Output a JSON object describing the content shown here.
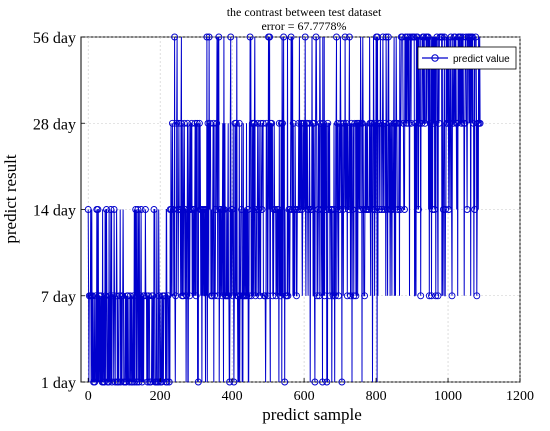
{
  "chart_data": {
    "type": "line",
    "title": "the contrast between test dataset",
    "subtitle": "error = 67.7778%",
    "xlabel": "predict sample",
    "ylabel": "predict result",
    "xlim": [
      -20,
      1200
    ],
    "x_ticks": [
      0,
      200,
      400,
      600,
      800,
      1000,
      1200
    ],
    "y_categories": [
      "1 day",
      "7 day",
      "14 day",
      "28 day",
      "56 day"
    ],
    "y_tick_labels": [
      "1 day",
      "7 day",
      "14 day",
      "28 day",
      "56 day"
    ],
    "grid": true,
    "legend_position": "top-right",
    "series": [
      {
        "name": "predict value",
        "color": "#0000cc",
        "marker": "circle",
        "n_points": 1090,
        "segments": [
          {
            "x_start": 0,
            "x_end": 230,
            "levels": [
              0,
              1,
              2
            ],
            "weights": [
              0.45,
              0.4,
              0.15
            ]
          },
          {
            "x_start": 230,
            "x_end": 480,
            "levels": [
              0,
              1,
              2,
              3,
              4
            ],
            "weights": [
              0.15,
              0.3,
              0.3,
              0.2,
              0.05
            ]
          },
          {
            "x_start": 480,
            "x_end": 700,
            "levels": [
              0,
              1,
              2,
              3,
              4
            ],
            "weights": [
              0.08,
              0.2,
              0.35,
              0.3,
              0.07
            ]
          },
          {
            "x_start": 700,
            "x_end": 870,
            "levels": [
              0,
              1,
              2,
              3,
              4
            ],
            "weights": [
              0.05,
              0.15,
              0.3,
              0.4,
              0.1
            ]
          },
          {
            "x_start": 870,
            "x_end": 1090,
            "levels": [
              1,
              2,
              3,
              4
            ],
            "weights": [
              0.05,
              0.1,
              0.35,
              0.5
            ]
          }
        ]
      }
    ]
  }
}
